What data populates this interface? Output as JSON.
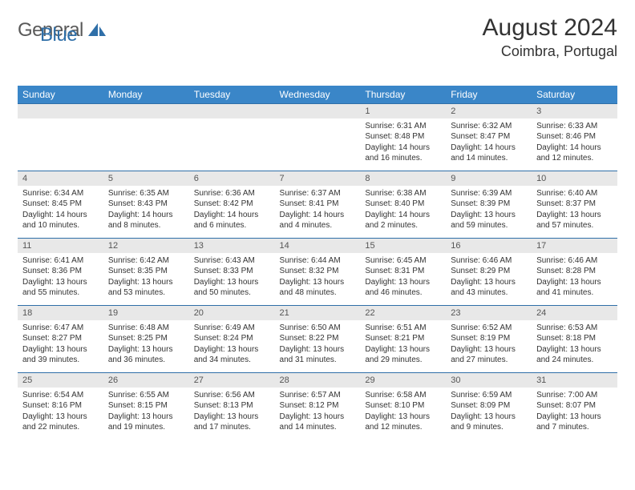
{
  "brand": {
    "general": "General",
    "blue": "Blue"
  },
  "title": "August 2024",
  "location": "Coimbra, Portugal",
  "colors": {
    "header_bg": "#3a86c8",
    "header_fg": "#ffffff",
    "date_bg": "#e8e8e8",
    "border": "#2f6fa8",
    "text": "#333333"
  },
  "weekdays": [
    "Sunday",
    "Monday",
    "Tuesday",
    "Wednesday",
    "Thursday",
    "Friday",
    "Saturday"
  ],
  "weeks": [
    {
      "dates": [
        "",
        "",
        "",
        "",
        "1",
        "2",
        "3"
      ],
      "cells": [
        {
          "empty": true
        },
        {
          "empty": true
        },
        {
          "empty": true
        },
        {
          "empty": true
        },
        {
          "sunrise": "Sunrise: 6:31 AM",
          "sunset": "Sunset: 8:48 PM",
          "daylight1": "Daylight: 14 hours",
          "daylight2": "and 16 minutes."
        },
        {
          "sunrise": "Sunrise: 6:32 AM",
          "sunset": "Sunset: 8:47 PM",
          "daylight1": "Daylight: 14 hours",
          "daylight2": "and 14 minutes."
        },
        {
          "sunrise": "Sunrise: 6:33 AM",
          "sunset": "Sunset: 8:46 PM",
          "daylight1": "Daylight: 14 hours",
          "daylight2": "and 12 minutes."
        }
      ]
    },
    {
      "dates": [
        "4",
        "5",
        "6",
        "7",
        "8",
        "9",
        "10"
      ],
      "cells": [
        {
          "sunrise": "Sunrise: 6:34 AM",
          "sunset": "Sunset: 8:45 PM",
          "daylight1": "Daylight: 14 hours",
          "daylight2": "and 10 minutes."
        },
        {
          "sunrise": "Sunrise: 6:35 AM",
          "sunset": "Sunset: 8:43 PM",
          "daylight1": "Daylight: 14 hours",
          "daylight2": "and 8 minutes."
        },
        {
          "sunrise": "Sunrise: 6:36 AM",
          "sunset": "Sunset: 8:42 PM",
          "daylight1": "Daylight: 14 hours",
          "daylight2": "and 6 minutes."
        },
        {
          "sunrise": "Sunrise: 6:37 AM",
          "sunset": "Sunset: 8:41 PM",
          "daylight1": "Daylight: 14 hours",
          "daylight2": "and 4 minutes."
        },
        {
          "sunrise": "Sunrise: 6:38 AM",
          "sunset": "Sunset: 8:40 PM",
          "daylight1": "Daylight: 14 hours",
          "daylight2": "and 2 minutes."
        },
        {
          "sunrise": "Sunrise: 6:39 AM",
          "sunset": "Sunset: 8:39 PM",
          "daylight1": "Daylight: 13 hours",
          "daylight2": "and 59 minutes."
        },
        {
          "sunrise": "Sunrise: 6:40 AM",
          "sunset": "Sunset: 8:37 PM",
          "daylight1": "Daylight: 13 hours",
          "daylight2": "and 57 minutes."
        }
      ]
    },
    {
      "dates": [
        "11",
        "12",
        "13",
        "14",
        "15",
        "16",
        "17"
      ],
      "cells": [
        {
          "sunrise": "Sunrise: 6:41 AM",
          "sunset": "Sunset: 8:36 PM",
          "daylight1": "Daylight: 13 hours",
          "daylight2": "and 55 minutes."
        },
        {
          "sunrise": "Sunrise: 6:42 AM",
          "sunset": "Sunset: 8:35 PM",
          "daylight1": "Daylight: 13 hours",
          "daylight2": "and 53 minutes."
        },
        {
          "sunrise": "Sunrise: 6:43 AM",
          "sunset": "Sunset: 8:33 PM",
          "daylight1": "Daylight: 13 hours",
          "daylight2": "and 50 minutes."
        },
        {
          "sunrise": "Sunrise: 6:44 AM",
          "sunset": "Sunset: 8:32 PM",
          "daylight1": "Daylight: 13 hours",
          "daylight2": "and 48 minutes."
        },
        {
          "sunrise": "Sunrise: 6:45 AM",
          "sunset": "Sunset: 8:31 PM",
          "daylight1": "Daylight: 13 hours",
          "daylight2": "and 46 minutes."
        },
        {
          "sunrise": "Sunrise: 6:46 AM",
          "sunset": "Sunset: 8:29 PM",
          "daylight1": "Daylight: 13 hours",
          "daylight2": "and 43 minutes."
        },
        {
          "sunrise": "Sunrise: 6:46 AM",
          "sunset": "Sunset: 8:28 PM",
          "daylight1": "Daylight: 13 hours",
          "daylight2": "and 41 minutes."
        }
      ]
    },
    {
      "dates": [
        "18",
        "19",
        "20",
        "21",
        "22",
        "23",
        "24"
      ],
      "cells": [
        {
          "sunrise": "Sunrise: 6:47 AM",
          "sunset": "Sunset: 8:27 PM",
          "daylight1": "Daylight: 13 hours",
          "daylight2": "and 39 minutes."
        },
        {
          "sunrise": "Sunrise: 6:48 AM",
          "sunset": "Sunset: 8:25 PM",
          "daylight1": "Daylight: 13 hours",
          "daylight2": "and 36 minutes."
        },
        {
          "sunrise": "Sunrise: 6:49 AM",
          "sunset": "Sunset: 8:24 PM",
          "daylight1": "Daylight: 13 hours",
          "daylight2": "and 34 minutes."
        },
        {
          "sunrise": "Sunrise: 6:50 AM",
          "sunset": "Sunset: 8:22 PM",
          "daylight1": "Daylight: 13 hours",
          "daylight2": "and 31 minutes."
        },
        {
          "sunrise": "Sunrise: 6:51 AM",
          "sunset": "Sunset: 8:21 PM",
          "daylight1": "Daylight: 13 hours",
          "daylight2": "and 29 minutes."
        },
        {
          "sunrise": "Sunrise: 6:52 AM",
          "sunset": "Sunset: 8:19 PM",
          "daylight1": "Daylight: 13 hours",
          "daylight2": "and 27 minutes."
        },
        {
          "sunrise": "Sunrise: 6:53 AM",
          "sunset": "Sunset: 8:18 PM",
          "daylight1": "Daylight: 13 hours",
          "daylight2": "and 24 minutes."
        }
      ]
    },
    {
      "dates": [
        "25",
        "26",
        "27",
        "28",
        "29",
        "30",
        "31"
      ],
      "cells": [
        {
          "sunrise": "Sunrise: 6:54 AM",
          "sunset": "Sunset: 8:16 PM",
          "daylight1": "Daylight: 13 hours",
          "daylight2": "and 22 minutes."
        },
        {
          "sunrise": "Sunrise: 6:55 AM",
          "sunset": "Sunset: 8:15 PM",
          "daylight1": "Daylight: 13 hours",
          "daylight2": "and 19 minutes."
        },
        {
          "sunrise": "Sunrise: 6:56 AM",
          "sunset": "Sunset: 8:13 PM",
          "daylight1": "Daylight: 13 hours",
          "daylight2": "and 17 minutes."
        },
        {
          "sunrise": "Sunrise: 6:57 AM",
          "sunset": "Sunset: 8:12 PM",
          "daylight1": "Daylight: 13 hours",
          "daylight2": "and 14 minutes."
        },
        {
          "sunrise": "Sunrise: 6:58 AM",
          "sunset": "Sunset: 8:10 PM",
          "daylight1": "Daylight: 13 hours",
          "daylight2": "and 12 minutes."
        },
        {
          "sunrise": "Sunrise: 6:59 AM",
          "sunset": "Sunset: 8:09 PM",
          "daylight1": "Daylight: 13 hours",
          "daylight2": "and 9 minutes."
        },
        {
          "sunrise": "Sunrise: 7:00 AM",
          "sunset": "Sunset: 8:07 PM",
          "daylight1": "Daylight: 13 hours",
          "daylight2": "and 7 minutes."
        }
      ]
    }
  ]
}
